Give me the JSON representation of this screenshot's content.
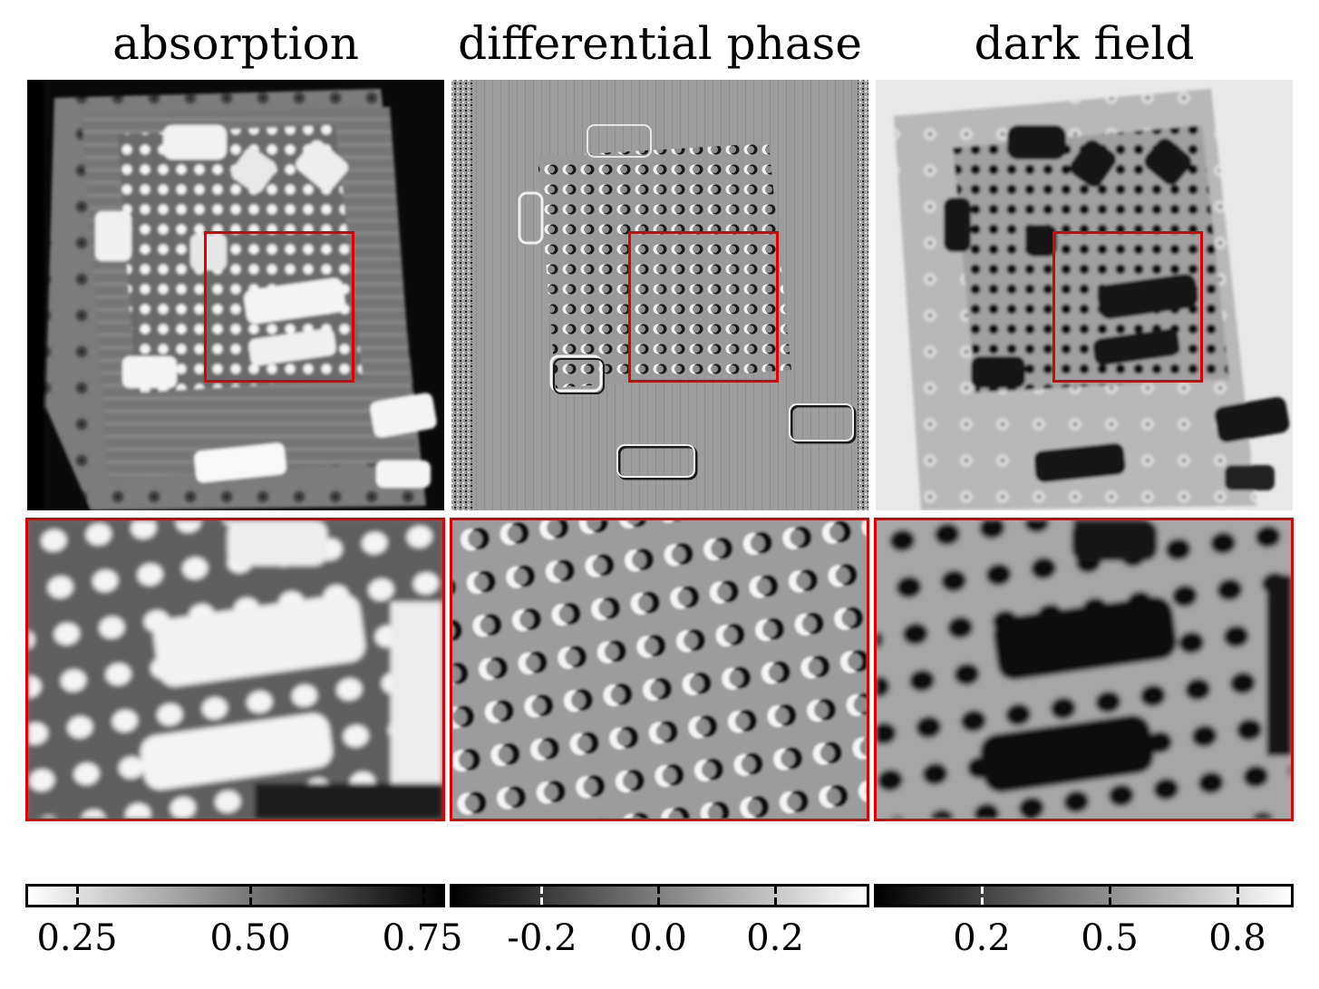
{
  "titles": {
    "absorption": "absorption",
    "phase": "differential phase",
    "dark": "dark field"
  },
  "colorbars": {
    "absorption": {
      "colormap": "white-to-black",
      "ticks": [
        {
          "value": 0.25,
          "label": "0.25"
        },
        {
          "value": 0.5,
          "label": "0.50"
        },
        {
          "value": 0.75,
          "label": "0.75"
        }
      ]
    },
    "phase": {
      "colormap": "black-to-white",
      "ticks": [
        {
          "value": -0.2,
          "label": "-0.2"
        },
        {
          "value": 0.0,
          "label": "0.0"
        },
        {
          "value": 0.2,
          "label": "0.2"
        }
      ]
    },
    "dark": {
      "colormap": "black-to-white",
      "ticks": [
        {
          "value": 0.2,
          "label": "0.2"
        },
        {
          "value": 0.5,
          "label": "0.5"
        },
        {
          "value": 0.8,
          "label": "0.8"
        }
      ]
    }
  },
  "colors": {
    "roi_border": "#e00000",
    "colorbar_border": "#000000"
  }
}
